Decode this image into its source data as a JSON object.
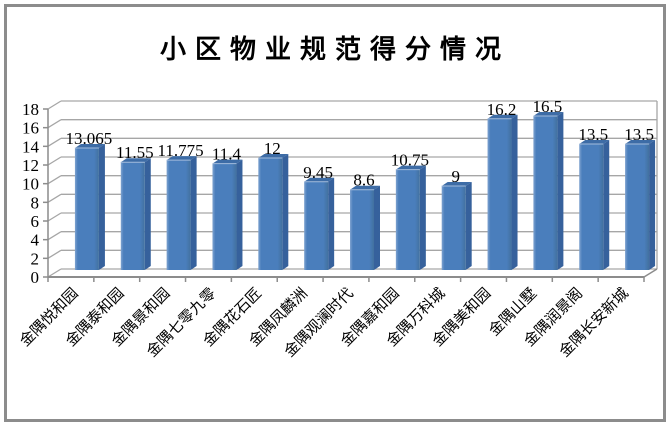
{
  "window": {
    "background": "#ffffff",
    "frame_border_color": "#8c8c8c"
  },
  "chart_data": {
    "type": "bar",
    "variant": "3d-clustered",
    "title": "小区物业规范得分情况",
    "categories": [
      "金隅悦和园",
      "金隅泰和园",
      "金隅景和园",
      "金隅七零九零",
      "金隅花石匠",
      "金隅凤麟洲",
      "金隅观澜时代",
      "金隅嘉和园",
      "金隅万科城",
      "金隅美和园",
      "金隅山墅",
      "金隅润景阁",
      "金隅长安新城"
    ],
    "values": [
      13.065,
      11.55,
      11.775,
      11.4,
      12,
      9.45,
      8.6,
      10.75,
      9,
      16.2,
      16.5,
      13.5,
      13.5
    ],
    "value_labels": [
      "13.065",
      "11.55",
      "11.775",
      "11.4",
      "12",
      "9.45",
      "8.6",
      "10.75",
      "9",
      "16.2",
      "16.5",
      "13.5",
      "13.5"
    ],
    "xlabel": "",
    "ylabel": "",
    "ylim": [
      0,
      18
    ],
    "ytick_step": 2,
    "ytick_labels": [
      "0",
      "2",
      "4",
      "6",
      "8",
      "10",
      "12",
      "14",
      "16",
      "18"
    ],
    "grid": true,
    "legend": false,
    "colors": {
      "bar_front": "#4a7ebc",
      "bar_front_light": "#7fa3d0",
      "bar_front_dark": "#42719f",
      "bar_side": "#36619c",
      "bar_top": "#3d6ca6",
      "bar_top_highlight": "#a3bcdc",
      "gridline": "#a6a6a6",
      "axis": "#8c8c8c",
      "text": "#000000"
    }
  }
}
